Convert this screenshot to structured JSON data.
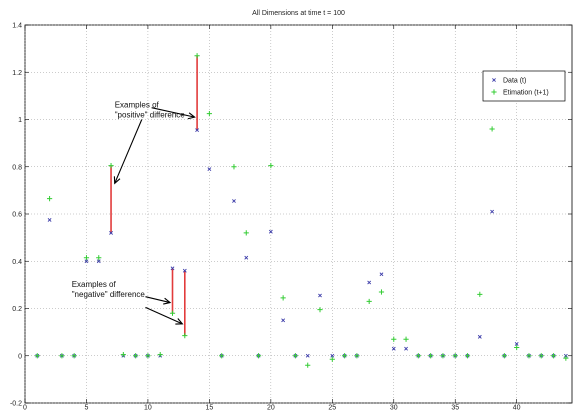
{
  "chart_data": {
    "type": "scatter",
    "title": "All Dimensions at time t = 100",
    "xlabel": "",
    "ylabel": "",
    "xlim": [
      0,
      44.5
    ],
    "ylim": [
      -0.2,
      1.4
    ],
    "xticks": [
      0,
      5,
      10,
      15,
      20,
      25,
      30,
      35,
      40
    ],
    "yticks": [
      -0.2,
      0,
      0.2,
      0.4,
      0.6,
      0.8,
      1,
      1.2,
      1.4
    ],
    "xtick_labels": [
      "0",
      "5",
      "10",
      "15",
      "20",
      "25",
      "30",
      "35",
      "40"
    ],
    "ytick_labels": [
      "-0.2",
      "0",
      "0.2",
      "0.4",
      "0.6",
      "0.8",
      "1",
      "1.2",
      "1.4"
    ],
    "grid": true,
    "legend": "top-right",
    "series": [
      {
        "name": "Data (t)",
        "marker": "x",
        "color": "#3a3aa8",
        "points": [
          [
            1,
            0
          ],
          [
            2,
            0.575
          ],
          [
            3,
            0
          ],
          [
            4,
            0
          ],
          [
            5,
            0.4
          ],
          [
            6,
            0.4
          ],
          [
            7,
            0.52
          ],
          [
            8,
            0
          ],
          [
            9,
            0
          ],
          [
            10,
            0
          ],
          [
            11,
            0
          ],
          [
            12,
            0.37
          ],
          [
            13,
            0.36
          ],
          [
            14,
            0.955
          ],
          [
            15,
            0.79
          ],
          [
            16,
            0
          ],
          [
            17,
            0.655
          ],
          [
            18,
            0.415
          ],
          [
            19,
            0
          ],
          [
            20,
            0.525
          ],
          [
            21,
            0.15
          ],
          [
            22,
            0
          ],
          [
            23,
            0
          ],
          [
            24,
            0.255
          ],
          [
            25,
            0
          ],
          [
            26,
            0
          ],
          [
            27,
            0
          ],
          [
            28,
            0.31
          ],
          [
            29,
            0.345
          ],
          [
            30,
            0.03
          ],
          [
            31,
            0.03
          ],
          [
            32,
            0
          ],
          [
            33,
            0
          ],
          [
            34,
            0
          ],
          [
            35,
            0
          ],
          [
            36,
            0
          ],
          [
            37,
            0.08
          ],
          [
            38,
            0.61
          ],
          [
            39,
            0
          ],
          [
            40,
            0.05
          ],
          [
            41,
            0
          ],
          [
            42,
            0
          ],
          [
            43,
            0
          ],
          [
            44,
            0
          ]
        ]
      },
      {
        "name": "Etimation (t+1)",
        "marker": "+",
        "color": "#33cc33",
        "points": [
          [
            1,
            0
          ],
          [
            2,
            0.665
          ],
          [
            3,
            0
          ],
          [
            4,
            0
          ],
          [
            5,
            0.415
          ],
          [
            6,
            0.415
          ],
          [
            7,
            0.805
          ],
          [
            8,
            0.005
          ],
          [
            9,
            0
          ],
          [
            10,
            0
          ],
          [
            11,
            0.005
          ],
          [
            12,
            0.18
          ],
          [
            13,
            0.085
          ],
          [
            14,
            1.27
          ],
          [
            15,
            1.025
          ],
          [
            16,
            0
          ],
          [
            17,
            0.8
          ],
          [
            18,
            0.52
          ],
          [
            19,
            0
          ],
          [
            20,
            0.805
          ],
          [
            21,
            0.245
          ],
          [
            22,
            0
          ],
          [
            23,
            -0.04
          ],
          [
            24,
            0.195
          ],
          [
            25,
            -0.015
          ],
          [
            26,
            0
          ],
          [
            27,
            0
          ],
          [
            28,
            0.23
          ],
          [
            29,
            0.27
          ],
          [
            30,
            0.07
          ],
          [
            31,
            0.07
          ],
          [
            32,
            0
          ],
          [
            33,
            0
          ],
          [
            34,
            0
          ],
          [
            35,
            0
          ],
          [
            36,
            0
          ],
          [
            37,
            0.26
          ],
          [
            38,
            0.96
          ],
          [
            39,
            0
          ],
          [
            40,
            0.035
          ],
          [
            41,
            0
          ],
          [
            42,
            0
          ],
          [
            43,
            0
          ],
          [
            44,
            -0.01
          ]
        ]
      }
    ],
    "difference_lines": [
      {
        "x": 7,
        "y1": 0.52,
        "y2": 0.805
      },
      {
        "x": 12,
        "y1": 0.37,
        "y2": 0.18
      },
      {
        "x": 13,
        "y1": 0.36,
        "y2": 0.085
      },
      {
        "x": 14,
        "y1": 0.955,
        "y2": 1.27
      }
    ],
    "annotations": [
      {
        "name": "positive",
        "lines": [
          "Examples of",
          "\"positive\" difference"
        ],
        "anchor": [
          7.3,
          1.05
        ],
        "arrows": [
          [
            [
              10.3,
              1.05
            ],
            [
              13.8,
              1.01
            ]
          ],
          [
            [
              9.5,
              1.0
            ],
            [
              7.3,
              0.73
            ]
          ]
        ]
      },
      {
        "name": "negative",
        "lines": [
          "Examples of",
          "\"negative\" difference"
        ],
        "anchor": [
          3.8,
          0.29
        ],
        "arrows": [
          [
            [
              9.8,
              0.25
            ],
            [
              11.8,
              0.225
            ]
          ],
          [
            [
              9.8,
              0.205
            ],
            [
              12.8,
              0.135
            ]
          ]
        ]
      }
    ],
    "line_color": "#e23b3b"
  }
}
